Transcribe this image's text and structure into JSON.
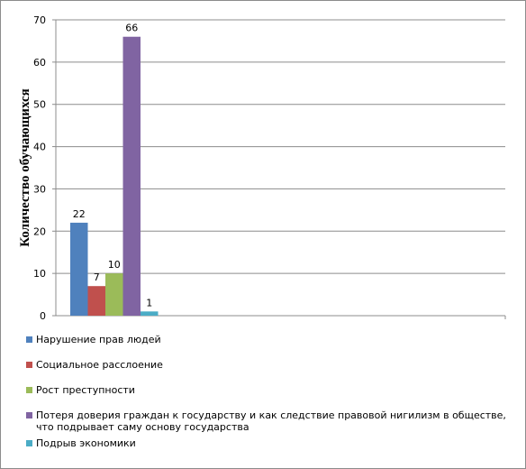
{
  "chart_data": {
    "type": "bar",
    "ylabel": "Количество обучающихся",
    "xlabel": "",
    "ylim": [
      0,
      70
    ],
    "yticks": [
      0,
      10,
      20,
      30,
      40,
      50,
      60,
      70
    ],
    "grid": true,
    "legend_position": "bottom",
    "series": [
      {
        "name": "Нарушение прав людей",
        "values": [
          22
        ],
        "color": "#4f81bd"
      },
      {
        "name": "Социальное расслоение",
        "values": [
          7
        ],
        "color": "#c0504d"
      },
      {
        "name": "Рост преступности",
        "values": [
          10
        ],
        "color": "#9bbb59"
      },
      {
        "name": "Потеря доверия граждан к государству и как следствие правовой нигилизм в обществе, что подрывает саму основу государства",
        "values": [
          66
        ],
        "color": "#8064a2"
      },
      {
        "name": "Подрыв экономики",
        "values": [
          1
        ],
        "color": "#4bacc6"
      }
    ]
  }
}
